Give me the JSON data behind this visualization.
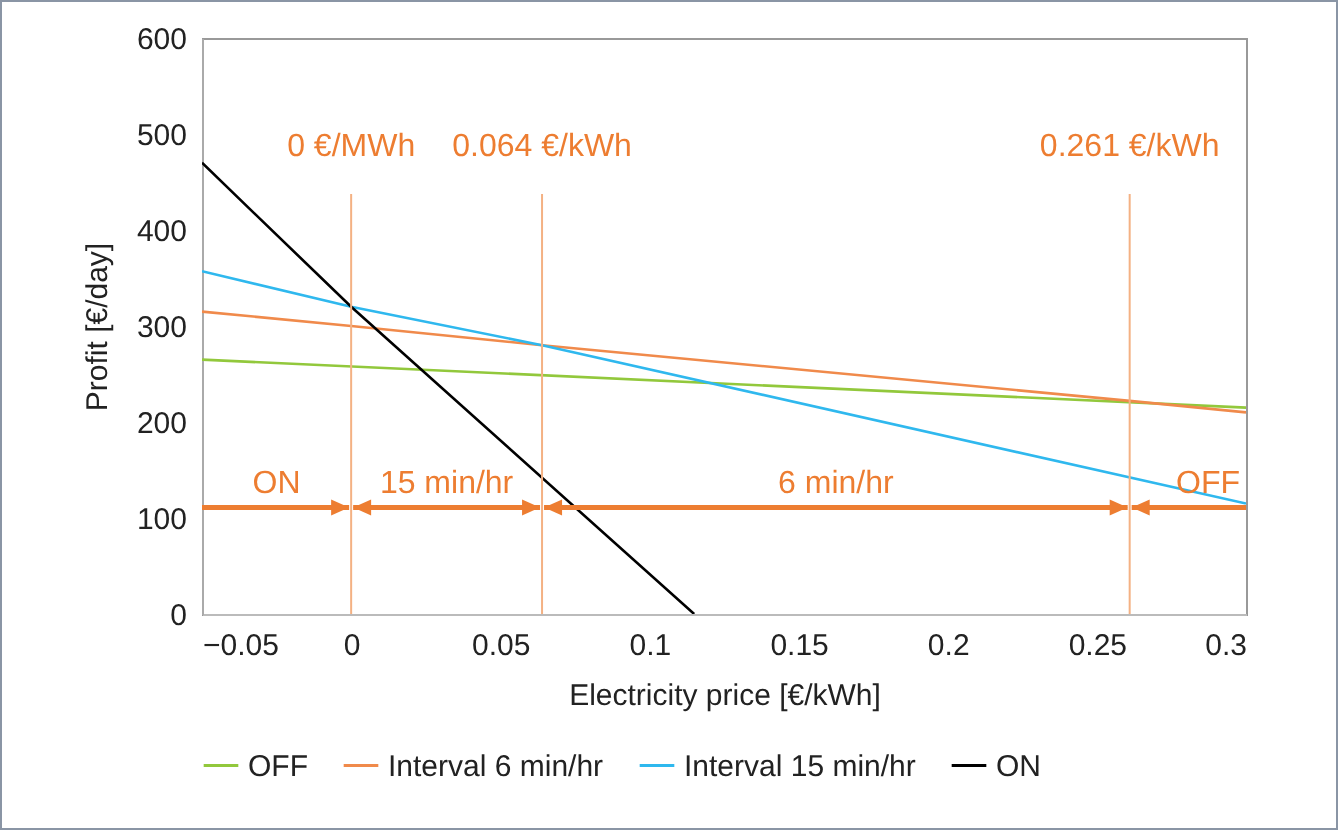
{
  "chart_data": {
    "type": "line",
    "xlabel": "Electricity price [€/kWh]",
    "ylabel": "Profit [€/day]",
    "xlim": [
      -0.05,
      0.3
    ],
    "xticks": [
      -0.05,
      0,
      0.05,
      0.1,
      0.15,
      0.2,
      0.25,
      0.3
    ],
    "ylim": [
      0,
      600
    ],
    "yticks": [
      0,
      100,
      200,
      300,
      400,
      500,
      600
    ],
    "grid": false,
    "legend": "bottom",
    "marker": "none",
    "line_style": "solid",
    "series": [
      {
        "name": "OFF",
        "color": "#92c83c",
        "x": [
          -0.05,
          0.3
        ],
        "values": [
          265,
          215
        ]
      },
      {
        "name": "Interval 6 min/hr",
        "color": "#f08a4b",
        "x": [
          -0.05,
          0,
          0.064,
          0.261,
          0.3
        ],
        "values": [
          315,
          300,
          280,
          222,
          210
        ]
      },
      {
        "name": "Interval 15 min/hr",
        "color": "#2fb8ee",
        "x": [
          -0.05,
          0,
          0.064,
          0.3
        ],
        "values": [
          357,
          320,
          280,
          115
        ]
      },
      {
        "name": "ON",
        "color": "#000000",
        "x": [
          -0.05,
          0,
          0.115
        ],
        "values": [
          470,
          320,
          0
        ]
      }
    ],
    "ref_lines": [
      {
        "axis": "x",
        "value": 0,
        "label": "0 €/MWh",
        "color": "#f4b183"
      },
      {
        "axis": "x",
        "value": 0.064,
        "label": "0.064 €/kWh",
        "color": "#f4b183"
      },
      {
        "axis": "x",
        "value": 0.261,
        "label": "0.261 €/kWh",
        "color": "#f4b183"
      }
    ],
    "annotations": [
      "ON",
      "15 min/hr",
      "6 min/hr",
      "OFF"
    ]
  }
}
